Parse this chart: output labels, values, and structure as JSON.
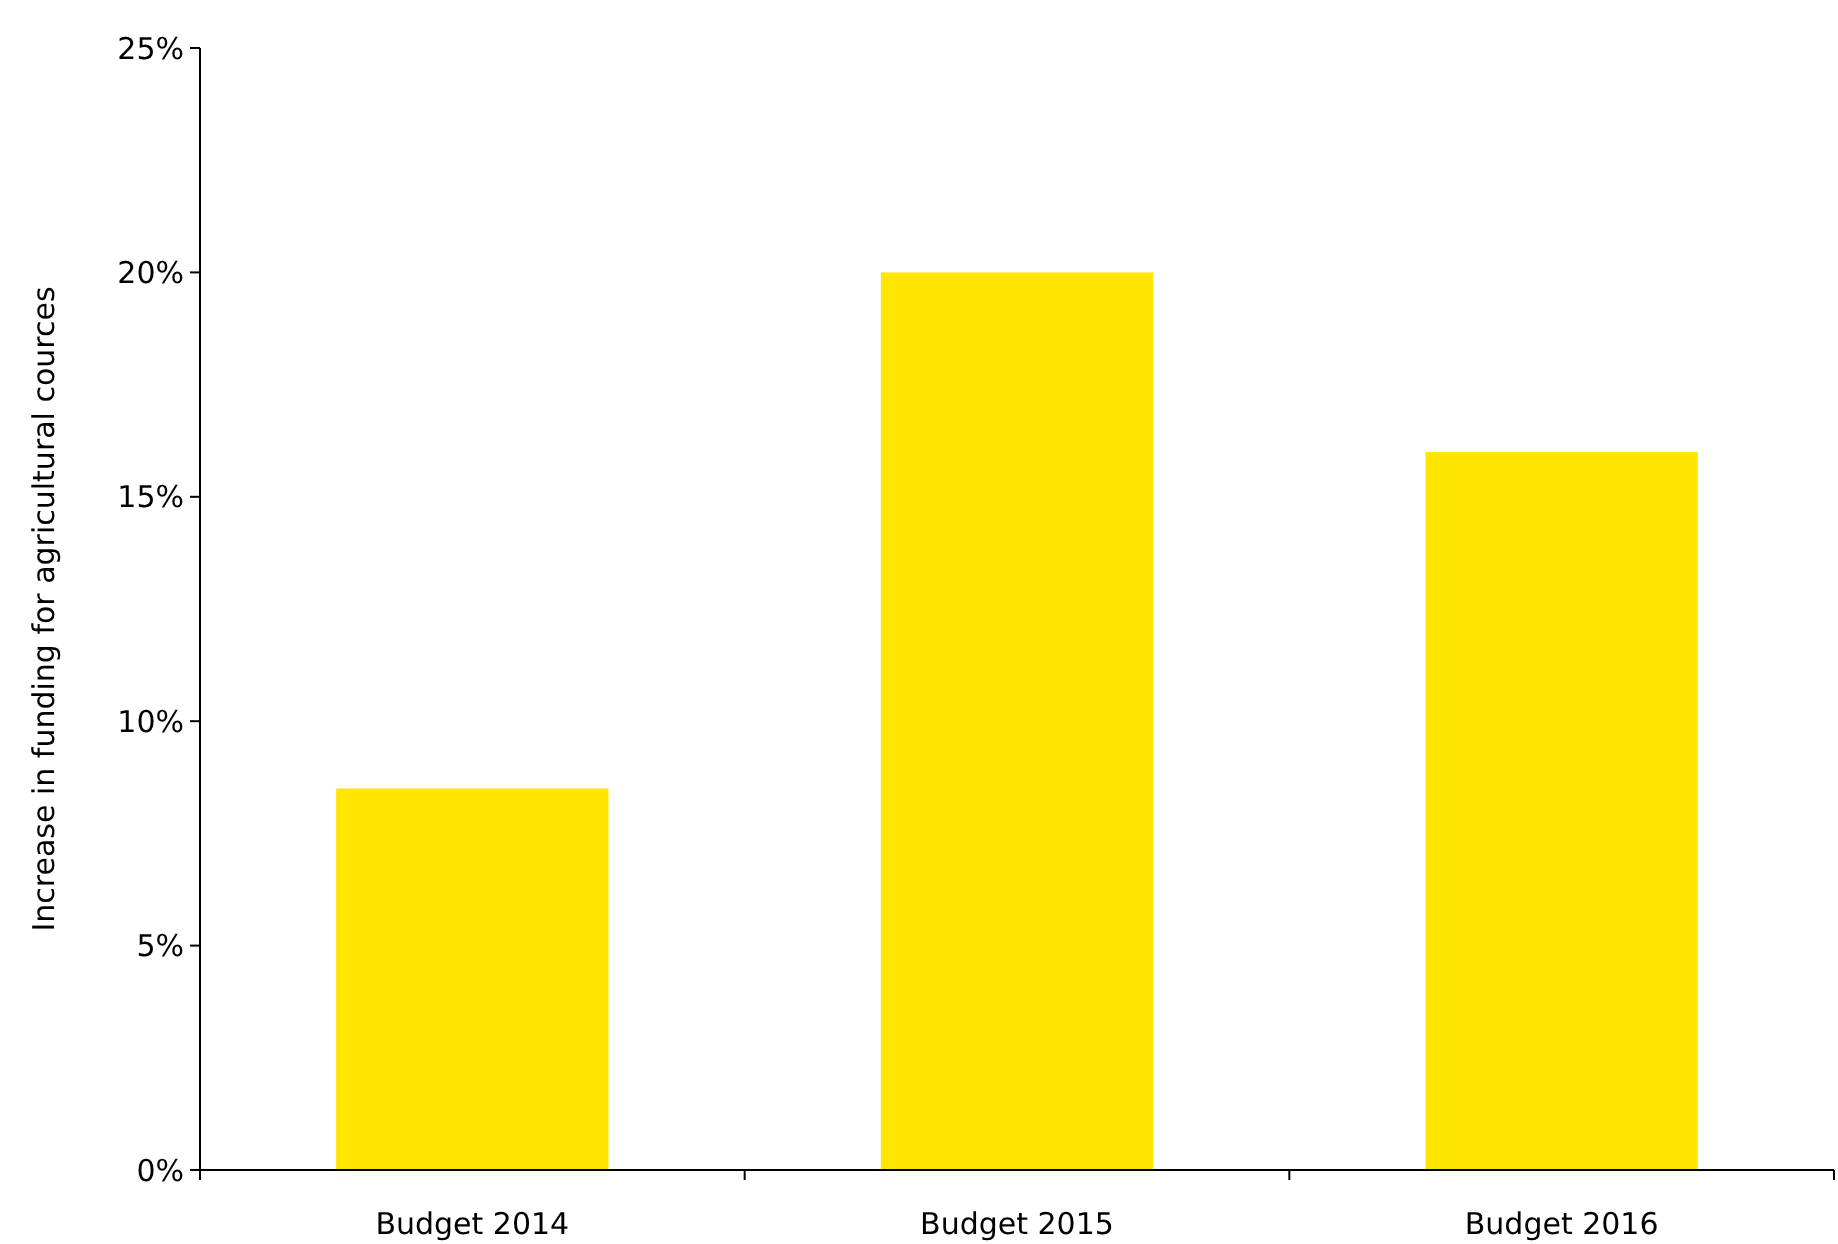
{
  "chart_data": {
    "type": "bar",
    "ylabel": "Increase in funding for agricultural cources",
    "categories": [
      "Budget 2014",
      "Budget 2015",
      "Budget 2016"
    ],
    "values": [
      8.5,
      20,
      16
    ],
    "color": "#ffe600",
    "ylim": [
      0,
      25
    ],
    "yticks": [
      {
        "value": 0,
        "label": "0%"
      },
      {
        "value": 5,
        "label": "5%"
      },
      {
        "value": 10,
        "label": "10%"
      },
      {
        "value": 15,
        "label": "15%"
      },
      {
        "value": 20,
        "label": "20%"
      },
      {
        "value": 25,
        "label": "25%"
      }
    ],
    "grid": false
  }
}
